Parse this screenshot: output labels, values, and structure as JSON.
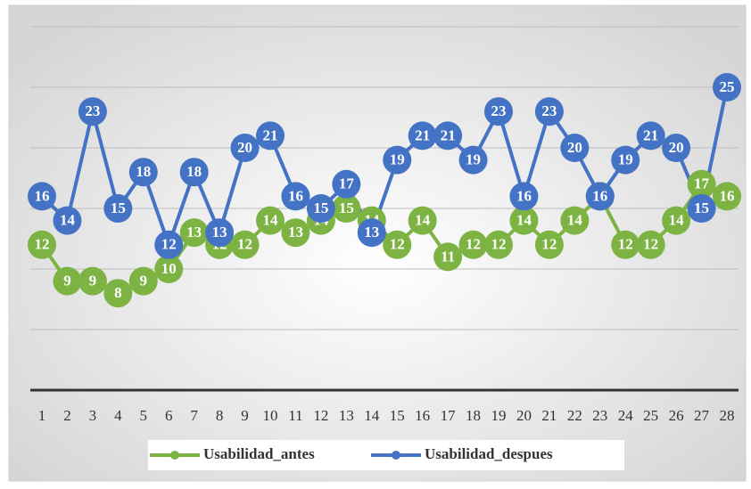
{
  "chart_data": {
    "type": "line",
    "categories": [
      "1",
      "2",
      "3",
      "4",
      "5",
      "6",
      "7",
      "8",
      "9",
      "10",
      "11",
      "12",
      "13",
      "14",
      "15",
      "16",
      "17",
      "18",
      "19",
      "20",
      "21",
      "22",
      "23",
      "24",
      "25",
      "26",
      "27",
      "28"
    ],
    "series": [
      {
        "name": "Usabilidad_antes",
        "color": "#7cb342",
        "values": [
          12,
          9,
          9,
          8,
          9,
          10,
          13,
          12,
          12,
          14,
          13,
          14,
          15,
          14,
          12,
          14,
          11,
          12,
          12,
          14,
          12,
          14,
          16,
          12,
          12,
          14,
          17,
          16
        ]
      },
      {
        "name": "Usabilidad_despues",
        "color": "#4472c4",
        "values": [
          16,
          14,
          23,
          15,
          18,
          12,
          18,
          13,
          20,
          21,
          16,
          15,
          17,
          13,
          19,
          21,
          21,
          19,
          23,
          16,
          23,
          20,
          16,
          19,
          21,
          20,
          15,
          25
        ]
      }
    ],
    "ylim": [
      0,
      30
    ],
    "yticks": [
      0,
      5,
      10,
      15,
      20,
      25,
      30
    ],
    "grid": true,
    "legend": "bottom"
  }
}
